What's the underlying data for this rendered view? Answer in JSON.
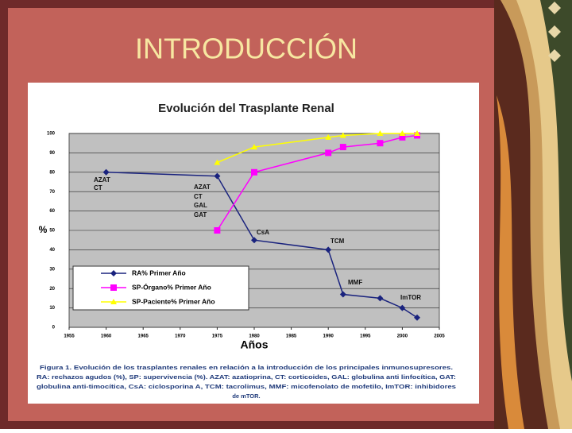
{
  "slide_title": "INTRODUCCIÓN",
  "chart_data": {
    "type": "line",
    "title": "Evolución del Trasplante Renal",
    "x_label": "Años",
    "y_label": "%",
    "xlim": [
      1955,
      2005
    ],
    "xticks": [
      1955,
      1960,
      1965,
      1970,
      1975,
      1980,
      1985,
      1990,
      1995,
      2000,
      2005
    ],
    "ylim": [
      0,
      100
    ],
    "yticks": [
      0,
      10,
      20,
      30,
      40,
      50,
      60,
      70,
      80,
      90,
      100
    ],
    "grid": true,
    "legend": "lower left",
    "series": [
      {
        "name": "RA% Primer Año",
        "color": "#1a237e",
        "marker": "diamond",
        "x": [
          1960,
          1975,
          1980,
          1990,
          1992,
          1997,
          2000,
          2002
        ],
        "values": [
          80,
          78,
          45,
          40,
          17,
          15,
          10,
          5
        ]
      },
      {
        "name": "SP-Órgano% Primer Año",
        "color": "#ff00ff",
        "marker": "square",
        "x": [
          1975,
          1980,
          1990,
          1992,
          1997,
          2000,
          2002
        ],
        "values": [
          50,
          80,
          90,
          93,
          95,
          98,
          99
        ]
      },
      {
        "name": "SP-Paciente% Primer Año",
        "color": "#ffff00",
        "marker": "triangle",
        "x": [
          1975,
          1980,
          1990,
          1992,
          1997,
          2000,
          2002
        ],
        "values": [
          85,
          93,
          98,
          99,
          100,
          100,
          100
        ]
      }
    ],
    "annotations": [
      "AZAT",
      "CT",
      "AZAT",
      "CT",
      "GAL",
      "GAT",
      "CsA",
      "TCM",
      "MMF",
      "ImTOR"
    ]
  },
  "caption": [
    "Figura 1. Evolución de los trasplantes renales en relación a la introducción de los principales inmunosupresores.",
    "RA: rechazos agudos (%), SP: supervivencia (%). AZAT: azatioprina, CT: corticoides, GAL: globulina anti linfocítica, GAT:",
    "globulina anti-timocítica, CsA: ciclosporina A, TCM: tacrolimus, MMF: micofenolato de mofetilo, ImTOR: inhibidores",
    "de mTOR."
  ]
}
